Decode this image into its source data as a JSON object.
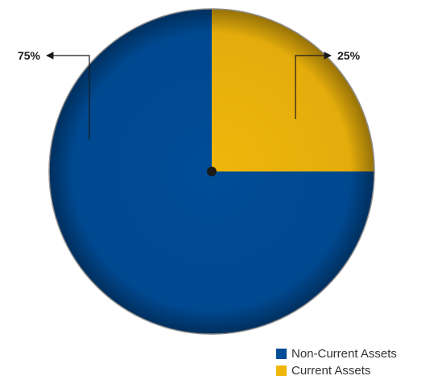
{
  "chart_data": {
    "type": "pie",
    "title": "",
    "start_angle_deg": 90,
    "slices": [
      {
        "label": "Current Assets",
        "value": 25,
        "value_label": "25%",
        "color": "#f0b60c",
        "annotation_side": "right"
      },
      {
        "label": "Non-Current Assets",
        "value": 75,
        "value_label": "75%",
        "color": "#004c97",
        "annotation_side": "left"
      }
    ],
    "legend": {
      "position": "bottom-right",
      "entries": [
        {
          "label": "Non-Current Assets",
          "color": "#004c97"
        },
        {
          "label": "Current Assets",
          "color": "#f0b60c"
        }
      ]
    }
  }
}
